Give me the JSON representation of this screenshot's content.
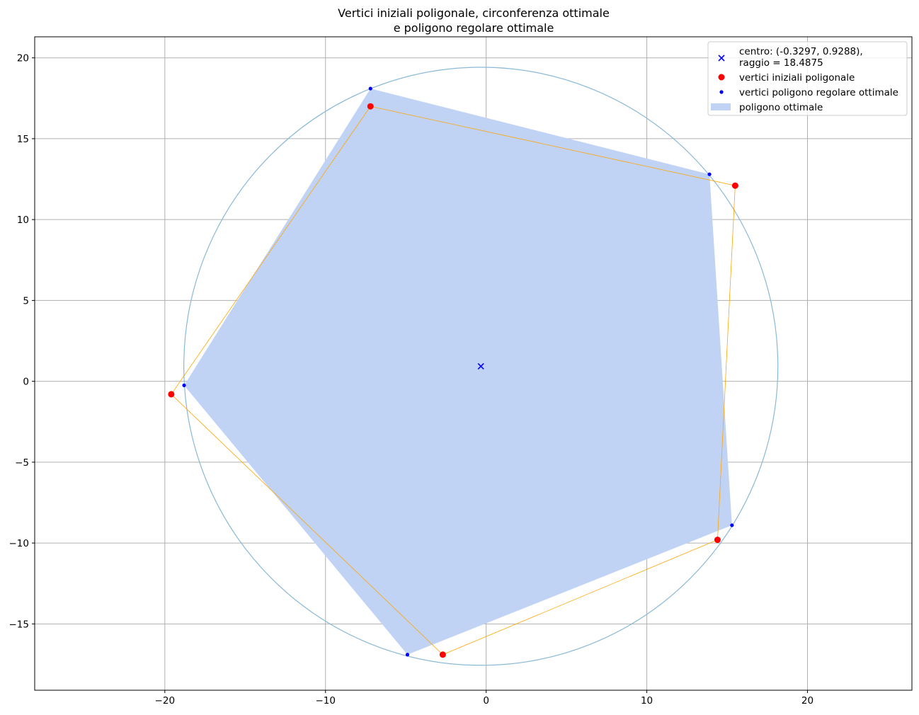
{
  "chart_data": {
    "type": "scatter",
    "title": [
      "Vertici iniziali poligonale, circonferenza ottimale",
      "e poligono regolare ottimale"
    ],
    "xlabel": "",
    "ylabel": "",
    "xlim": [
      -28.1,
      26.5
    ],
    "ylim": [
      -19.1,
      21.3
    ],
    "xticks": [
      -20,
      -10,
      0,
      10,
      20
    ],
    "xtick_labels": [
      "−20",
      "−10",
      "0",
      "10",
      "20"
    ],
    "yticks": [
      -15,
      -10,
      -5,
      0,
      5,
      10,
      15,
      20
    ],
    "ytick_labels": [
      "−15",
      "−10",
      "−5",
      "0",
      "5",
      "10",
      "15",
      "20"
    ],
    "grid": true,
    "legend_position": "top-right",
    "center": {
      "x": -0.3297,
      "y": 0.9288,
      "radius": 18.4875
    },
    "initial_vertices": [
      {
        "x": -7.2,
        "y": 17.0
      },
      {
        "x": 15.5,
        "y": 12.1
      },
      {
        "x": 14.4,
        "y": -9.8
      },
      {
        "x": -2.7,
        "y": -16.9
      },
      {
        "x": -19.6,
        "y": -0.8
      }
    ],
    "regular_polygon_vertices": [
      {
        "x": -7.2,
        "y": 18.1
      },
      {
        "x": 13.9,
        "y": 12.8
      },
      {
        "x": 15.3,
        "y": -8.9
      },
      {
        "x": -4.9,
        "y": -16.9
      },
      {
        "x": -18.8,
        "y": -0.25
      }
    ],
    "colors": {
      "center_marker": "#0000ff",
      "initial_vertices": "#ff0000",
      "polyline": "#ffa500",
      "regular_vertices": "#0000ff",
      "polygon_fill": "#c1d3f5",
      "circle": "#8ab9d6",
      "grid": "#b0b0b0"
    }
  },
  "legend": [
    {
      "label": [
        "centro: (-0.3297, 0.9288),",
        "raggio = 18.4875"
      ],
      "marker": "x-blue"
    },
    {
      "label": [
        "vertici iniziali poligonale"
      ],
      "marker": "dot-red"
    },
    {
      "label": [
        "vertici poligono regolare ottimale"
      ],
      "marker": "smalldot-blue"
    },
    {
      "label": [
        "poligono ottimale"
      ],
      "marker": "patch"
    }
  ]
}
